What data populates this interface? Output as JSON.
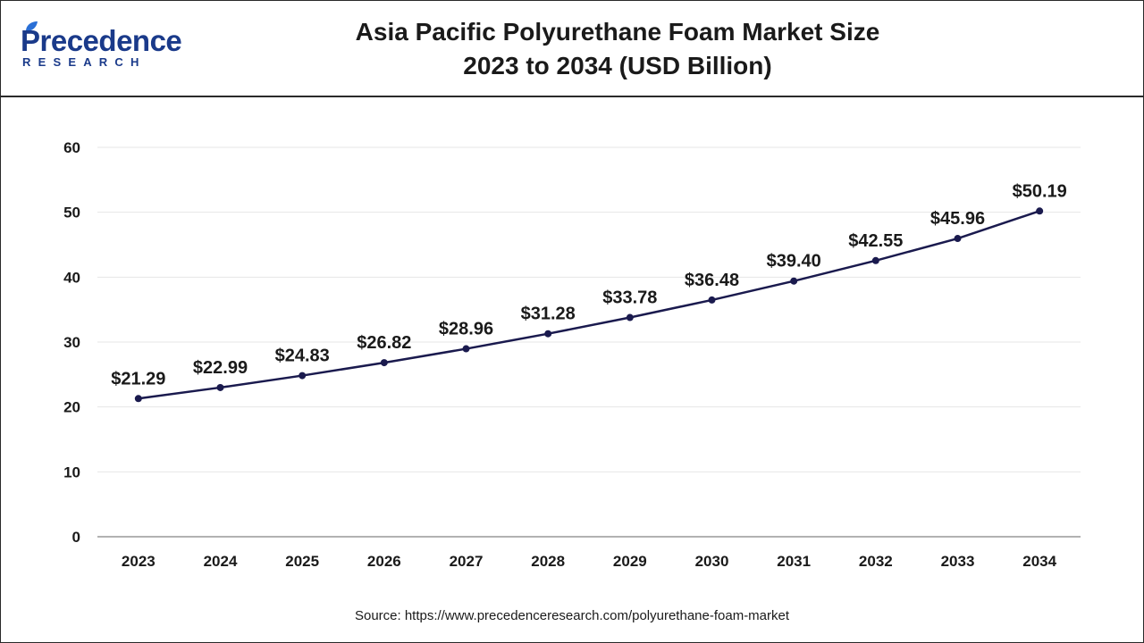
{
  "logo": {
    "main": "Precedence",
    "sub": "RESEARCH"
  },
  "header": {
    "title_line1": "Asia Pacific Polyurethane Foam Market Size",
    "title_line2": "2023 to 2034 (USD Billion)"
  },
  "source_text": "Source: https://www.precedenceresearch.com/polyurethane-foam-market",
  "colors": {
    "line": "#1a1a4e",
    "marker": "#1a1a4e",
    "grid": "#e6e6e6",
    "axis": "#999999",
    "brand": "#1a3a8a"
  },
  "chart_data": {
    "type": "line",
    "title": "Asia Pacific Polyurethane Foam Market Size 2023 to 2034 (USD Billion)",
    "xlabel": "",
    "ylabel": "",
    "categories": [
      "2023",
      "2024",
      "2025",
      "2026",
      "2027",
      "2028",
      "2029",
      "2030",
      "2031",
      "2032",
      "2033",
      "2034"
    ],
    "series": [
      {
        "values": [
          21.29,
          22.99,
          24.83,
          26.82,
          28.96,
          31.28,
          33.78,
          36.48,
          39.4,
          42.55,
          45.96,
          50.19
        ],
        "labels": [
          "$21.29",
          "$22.99",
          "$24.83",
          "$26.82",
          "$28.96",
          "$31.28",
          "$33.78",
          "$36.48",
          "$39.40",
          "$42.55",
          "$45.96",
          "$50.19"
        ]
      }
    ],
    "ylim": [
      0,
      60
    ],
    "yticks": [
      0,
      10,
      20,
      30,
      40,
      50,
      60
    ],
    "grid": true,
    "legend": "none"
  }
}
